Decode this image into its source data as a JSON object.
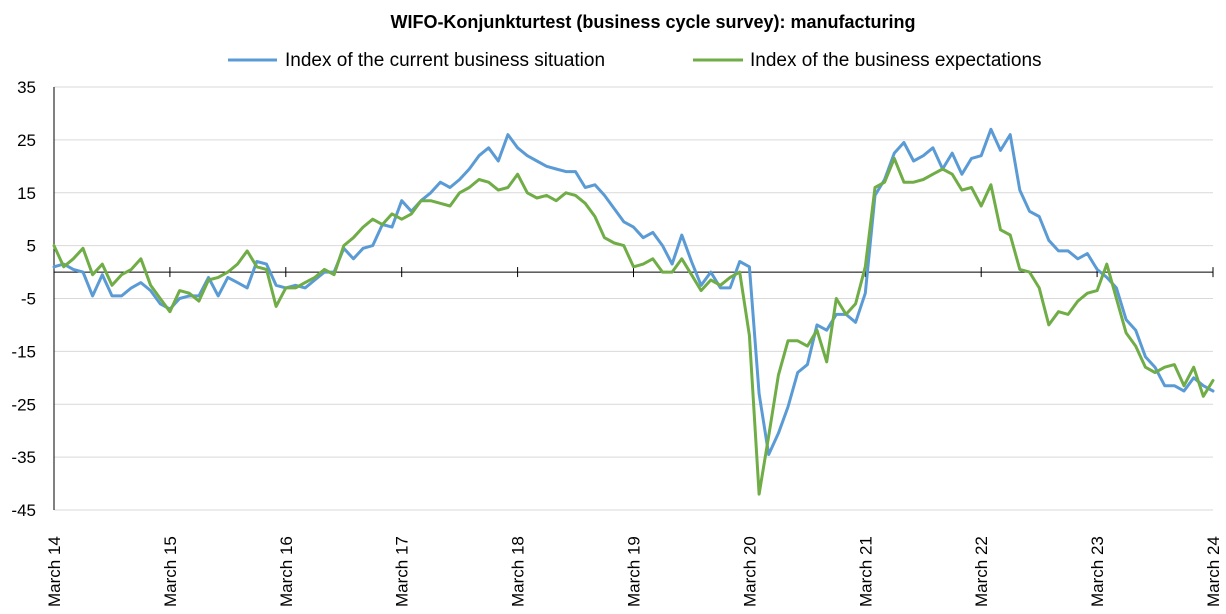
{
  "chart_data": {
    "type": "line",
    "title": "WIFO-Konjunkturtest (business cycle survey): manufacturing",
    "xlabel": "",
    "ylabel": "",
    "ylim": [
      -45,
      35
    ],
    "yticks": [
      35,
      25,
      15,
      5,
      -5,
      -15,
      -25,
      -35,
      -45
    ],
    "xticks": [
      "March 14",
      "March 15",
      "March 16",
      "March 17",
      "March 18",
      "March 19",
      "March 20",
      "March 21",
      "March 22",
      "March 23",
      "March 24"
    ],
    "x_start": "2014-03",
    "x_end": "2024-03",
    "grid": true,
    "legend_position": "top",
    "series": [
      {
        "name": "Index of the current business situation",
        "color": "#5b9bd5",
        "values": [
          1,
          1.5,
          0.5,
          0,
          -4.5,
          -0.5,
          -4.5,
          -4.5,
          -3,
          -2,
          -3.5,
          -6,
          -7,
          -5,
          -4.5,
          -4.5,
          -1,
          -4.5,
          -1,
          -2,
          -3,
          2,
          1.5,
          -2.5,
          -3,
          -2.5,
          -3,
          -1.5,
          0,
          0,
          4.5,
          2.5,
          4.5,
          5,
          9,
          8.5,
          13.5,
          11.5,
          13.5,
          15,
          17,
          16,
          17.5,
          19.5,
          22,
          23.5,
          21,
          26,
          23.5,
          22,
          21,
          20,
          19.5,
          19,
          19,
          16,
          16.5,
          14.5,
          12,
          9.5,
          8.5,
          6.5,
          7.5,
          5,
          1.5,
          7,
          2,
          -2.5,
          0,
          -3,
          -3,
          2,
          1,
          -23,
          -34.5,
          -30.5,
          -25.5,
          -19,
          -17.5,
          -10,
          -11,
          -8,
          -8,
          -9.5,
          -4,
          14.5,
          17.5,
          22.5,
          24.5,
          21,
          22,
          23.5,
          19.5,
          22.5,
          18.5,
          21.5,
          22,
          27,
          23,
          26,
          15.5,
          11.5,
          10.5,
          6,
          4,
          4,
          2.5,
          3.5,
          0.5,
          -1,
          -3,
          -9,
          -11,
          -16,
          -18,
          -21.5,
          -21.5,
          -22.5,
          -20,
          -21.5,
          -22.5
        ],
        "labels": []
      },
      {
        "name": "Index of the  business expectations",
        "color": "#70ad47",
        "values": [
          5,
          1,
          2.5,
          4.5,
          -0.5,
          1.5,
          -2.5,
          -0.5,
          0.5,
          2.5,
          -2.5,
          -5,
          -7.5,
          -3.5,
          -4,
          -5.5,
          -1.5,
          -1,
          0,
          1.5,
          4,
          1,
          0.5,
          -6.5,
          -3,
          -3,
          -2,
          -1,
          0.5,
          -0.5,
          5,
          6.5,
          8.5,
          10,
          9,
          11,
          10,
          11,
          13.5,
          13.5,
          13,
          12.5,
          15,
          16,
          17.5,
          17,
          15.5,
          16,
          18.5,
          15,
          14,
          14.5,
          13.5,
          15,
          14.5,
          13,
          10.5,
          6.5,
          5.5,
          5,
          1,
          1.5,
          2.5,
          0,
          0,
          2.5,
          -0.5,
          -3.5,
          -1.5,
          -2.5,
          -1,
          0,
          -12,
          -42,
          -31,
          -19.5,
          -13,
          -13,
          -14,
          -11,
          -17,
          -5,
          -8,
          -6,
          1,
          16,
          17,
          21.5,
          17,
          17,
          17.5,
          18.5,
          19.5,
          18.5,
          15.5,
          16,
          12.5,
          16.5,
          8,
          7,
          0.5,
          0,
          -3,
          -10,
          -7.5,
          -8,
          -5.5,
          -4,
          -3.5,
          1.5,
          -5,
          -11.5,
          -14,
          -18,
          -19,
          -18,
          -17.5,
          -21.5,
          -18,
          -23.5,
          -20.5
        ],
        "labels": []
      }
    ]
  }
}
